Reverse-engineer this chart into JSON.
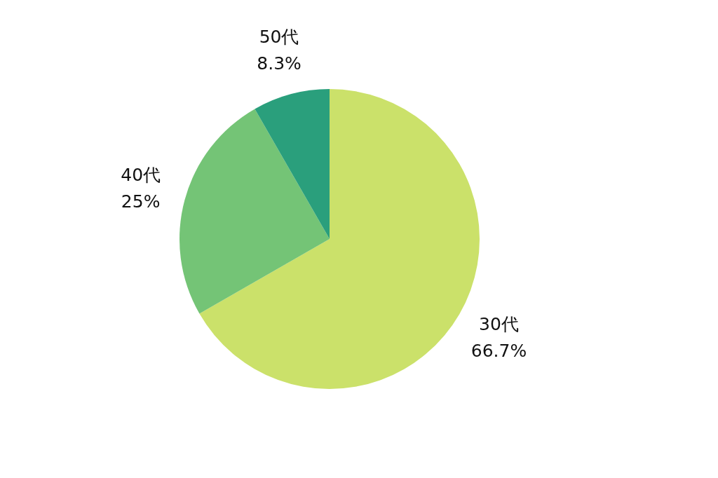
{
  "chart_data": {
    "type": "pie",
    "categories": [
      "30代",
      "40代",
      "50代"
    ],
    "values": [
      66.7,
      25,
      8.3
    ],
    "colors": [
      "#cbe16a",
      "#74c476",
      "#2a9f7c"
    ],
    "value_labels": [
      "66.7%",
      "25%",
      "8.3%"
    ]
  }
}
